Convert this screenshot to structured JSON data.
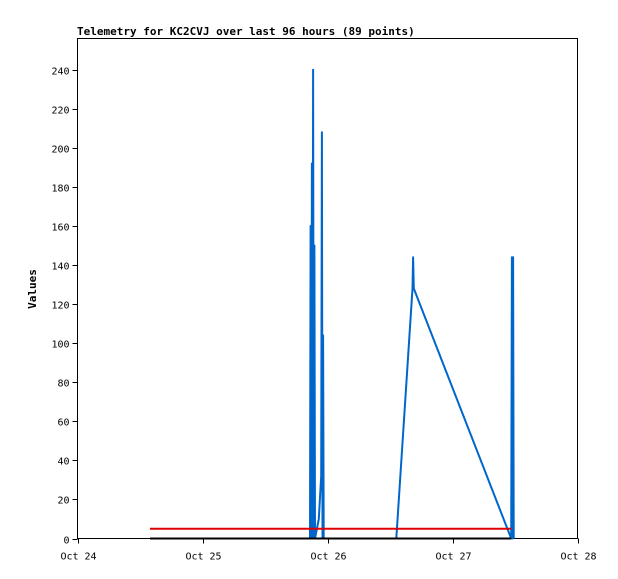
{
  "chart_data": {
    "type": "line",
    "title": "Telemetry for KC2CVJ over last 96 hours (89 points)",
    "xlabel": "",
    "ylabel": "Values",
    "x_unit": "days (Oct)",
    "xlim": [
      24,
      28
    ],
    "ylim": [
      0,
      256
    ],
    "x_ticks": [
      {
        "label": "Oct 24",
        "x": 24
      },
      {
        "label": "Oct 25",
        "x": 25
      },
      {
        "label": "Oct 26",
        "x": 26
      },
      {
        "label": "Oct 27",
        "x": 27
      },
      {
        "label": "Oct 28",
        "x": 28
      }
    ],
    "y_ticks": [
      0,
      20,
      40,
      60,
      80,
      100,
      120,
      140,
      160,
      180,
      200,
      220,
      240
    ],
    "grid": false,
    "series": [
      {
        "color": "#0066cc",
        "width": 2,
        "points": [
          [
            25.86,
            0
          ],
          [
            25.865,
            160
          ],
          [
            25.87,
            0
          ],
          [
            25.875,
            192
          ],
          [
            25.88,
            0
          ],
          [
            25.885,
            240
          ],
          [
            25.89,
            0
          ],
          [
            25.895,
            150
          ],
          [
            25.9,
            0
          ],
          [
            25.93,
            10
          ],
          [
            25.95,
            32
          ],
          [
            25.955,
            208
          ],
          [
            25.96,
            0
          ],
          [
            25.965,
            104
          ],
          [
            25.97,
            0
          ],
          [
            26.55,
            0
          ],
          [
            26.68,
            128
          ],
          [
            26.685,
            144
          ],
          [
            26.69,
            128
          ],
          [
            27.47,
            0
          ],
          [
            27.475,
            144
          ],
          [
            27.48,
            0
          ],
          [
            27.485,
            144
          ],
          [
            27.49,
            0
          ]
        ]
      },
      {
        "color": "#dd0000",
        "width": 2,
        "points": [
          [
            24.58,
            5
          ],
          [
            27.47,
            5
          ]
        ]
      },
      {
        "color": "#000000",
        "width": 2,
        "points": [
          [
            24.58,
            0
          ],
          [
            27.47,
            0
          ]
        ]
      }
    ]
  }
}
